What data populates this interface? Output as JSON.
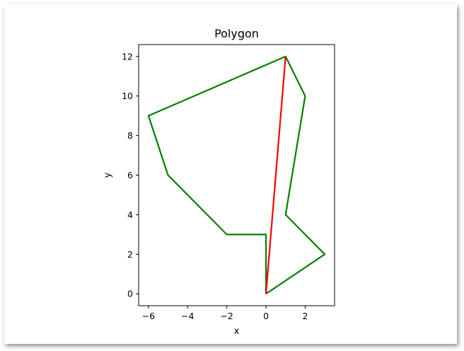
{
  "chart_data": {
    "type": "line",
    "title": "Polygon",
    "xlabel": "x",
    "ylabel": "y",
    "xlim": [
      -6.5,
      3.5
    ],
    "ylim": [
      -0.6,
      12.6
    ],
    "xticks": [
      -6,
      -4,
      -2,
      0,
      2
    ],
    "yticks": [
      0,
      2,
      4,
      6,
      8,
      10,
      12
    ],
    "grid": false,
    "series": [
      {
        "color": "#008000",
        "points": [
          [
            0,
            0
          ],
          [
            0,
            3
          ],
          [
            -2,
            3
          ],
          [
            -5,
            6
          ],
          [
            -6,
            9
          ],
          [
            1,
            12
          ],
          [
            2,
            10
          ],
          [
            1,
            4
          ],
          [
            3,
            2
          ],
          [
            0,
            0
          ]
        ]
      },
      {
        "color": "#ff0000",
        "points": [
          [
            0,
            0
          ],
          [
            1,
            12
          ]
        ]
      }
    ]
  }
}
